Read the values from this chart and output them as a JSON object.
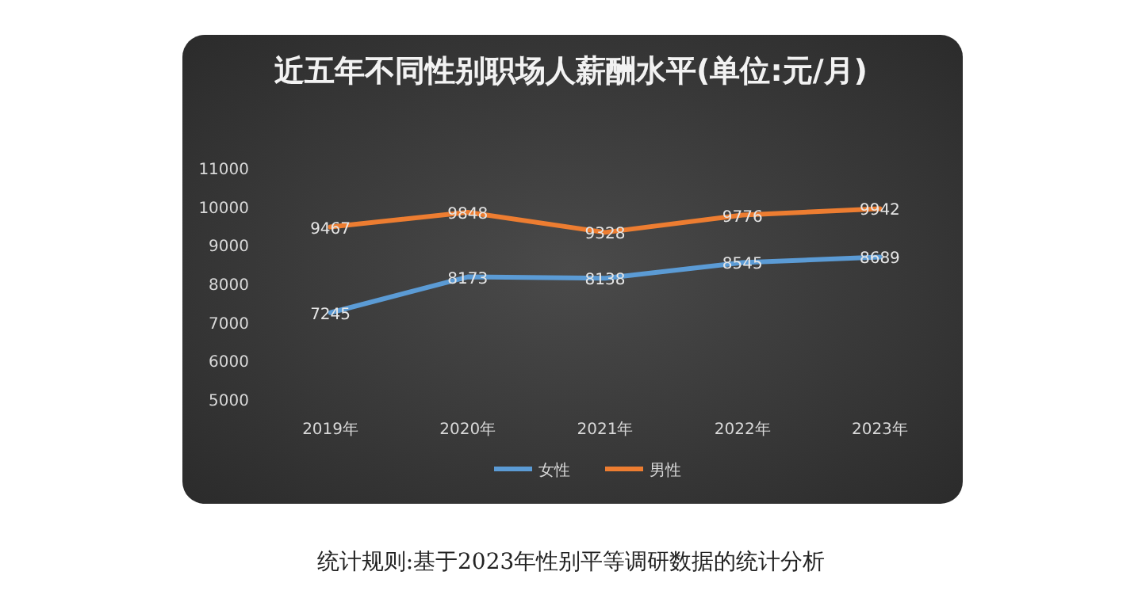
{
  "chart_data": {
    "type": "line",
    "title": "近五年不同性别职场人薪酬水平(单位:元/月)",
    "categories": [
      "2019年",
      "2020年",
      "2021年",
      "2022年",
      "2023年"
    ],
    "series": [
      {
        "name": "女性",
        "color": "#5b9bd5",
        "values": [
          7245,
          8173,
          8138,
          8545,
          8689
        ]
      },
      {
        "name": "男性",
        "color": "#ed7d31",
        "values": [
          9467,
          9848,
          9328,
          9776,
          9942
        ]
      }
    ],
    "ylim": [
      5000,
      11000
    ],
    "yticks": [
      5000,
      6000,
      7000,
      8000,
      9000,
      10000,
      11000
    ],
    "data_labels": true,
    "legend": "bottom",
    "marker": "none",
    "line_style": "solid",
    "annotations": [
      "统计规则:基于2023年性别平等调研数据的统计分析"
    ]
  }
}
